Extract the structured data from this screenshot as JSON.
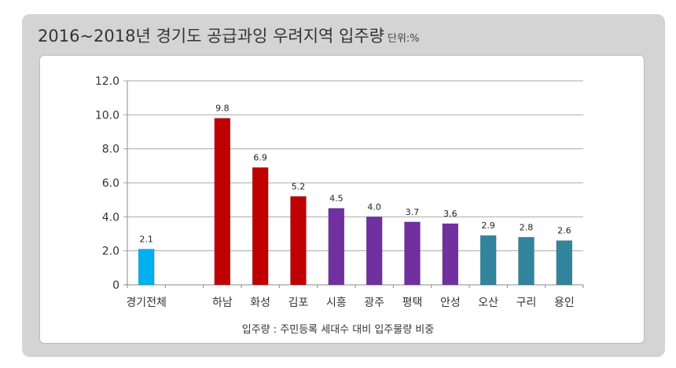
{
  "title": "2016~2018년 경기도 공급과잉 우려지역 입주량",
  "unit": "단위:%",
  "caption": "입주량 : 주민등록 세대수 대비 입주물량 비중",
  "chart_data": {
    "type": "bar",
    "title": "2016~2018년 경기도 공급과잉 우려지역 입주량",
    "ylabel": "단위:%",
    "xlabel": "",
    "categories": [
      "경기전체",
      "",
      "하남",
      "화성",
      "김포",
      "시흥",
      "광주",
      "평택",
      "안성",
      "오산",
      "구리",
      "용인"
    ],
    "values": [
      2.1,
      null,
      9.8,
      6.9,
      5.2,
      4.5,
      4.0,
      3.7,
      3.6,
      2.9,
      2.8,
      2.6
    ],
    "labels": [
      "2.1",
      "",
      "9.8",
      "6.9",
      "5.2",
      "4.5",
      "4.0",
      "3.7",
      "3.6",
      "2.9",
      "2.8",
      "2.6"
    ],
    "colors": [
      "#00b0f0",
      "#000000",
      "#c00000",
      "#c00000",
      "#c00000",
      "#7030a0",
      "#7030a0",
      "#7030a0",
      "#7030a0",
      "#31849b",
      "#31849b",
      "#31849b"
    ],
    "ylim": [
      0,
      12
    ],
    "yticks": [
      0,
      2,
      4,
      6,
      8,
      10,
      12
    ],
    "ytick_labels": [
      "0",
      "2.0",
      "4.0",
      "6.0",
      "8.0",
      "10.0",
      "12.0"
    ],
    "grid": true
  }
}
